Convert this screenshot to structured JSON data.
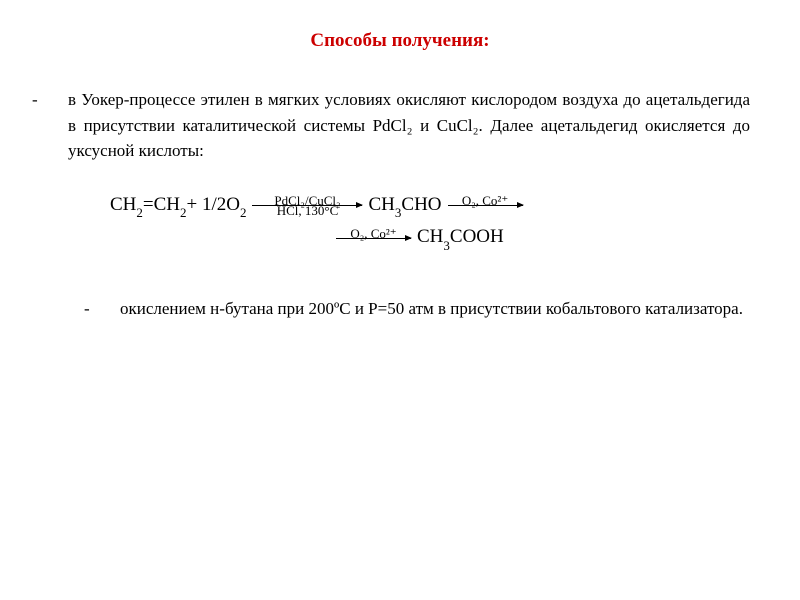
{
  "title": "Способы получения:",
  "paragraph1": {
    "bullet": "- ",
    "text": "в Уокер-процессе этилен в мягких условиях окисляют кислородом воздуха до ацетальдегида в присутствии каталитической системы PdCl₂ и CuCl₂.   Далее ацетальдегид окисляется до уксусной кислоты:"
  },
  "equation": {
    "row1": {
      "lhs_ch2": "CH",
      "lhs_eq": "=CH",
      "lhs_plus": " + 1/2O",
      "arrow1_top": "PdCl₂/CuCl₂",
      "arrow1_bottom": "HCl, 130°C",
      "mid_ch3cho": "CH",
      "mid_cho": "CHO",
      "arrow2_top": "O₂, Co²⁺"
    },
    "row2": {
      "arrow_top": "O₂, Co²⁺",
      "product": "CH",
      "product_cooh": "COOH"
    }
  },
  "paragraph2": {
    "bullet": "- ",
    "text": "окислением н-бутана при 200ºС и Р=50 атм в присутствии кобальтового катализатора."
  },
  "colors": {
    "title": "#cc0000",
    "text": "#000000",
    "background": "#ffffff"
  },
  "fonts": {
    "family": "Times New Roman",
    "title_size": 19,
    "body_size": 17,
    "equation_size": 19,
    "sub_size": 13,
    "arrow_label_size": 13
  }
}
